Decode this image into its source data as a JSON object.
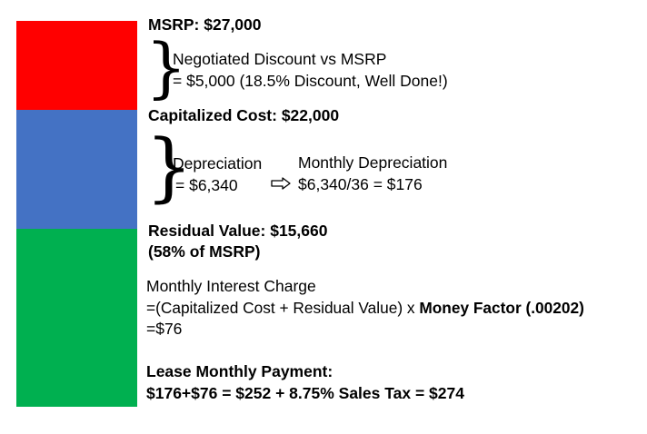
{
  "colors": {
    "msrp_segment": "#ff0000",
    "depreciation_segment": "#4472c4",
    "residual_segment": "#00b050"
  },
  "msrp_label": "MSRP: $27,000",
  "discount": {
    "line1": "Negotiated Discount vs MSRP",
    "line2": "= $5,000 (18.5% Discount, Well Done!)"
  },
  "capitalized_cost_label": "Capitalized Cost: $22,000",
  "depreciation": {
    "line1": "Depreciation",
    "line2": "= $6,340"
  },
  "monthly_depreciation": {
    "line1": "Monthly Depreciation",
    "line2": "$6,340/36 = $176"
  },
  "residual": {
    "line1": "Residual Value: $15,660",
    "line2": "(58% of MSRP)"
  },
  "interest": {
    "title": "Monthly Interest Charge",
    "formula_prefix": "=(Capitalized Cost + Residual Value) x ",
    "formula_bold": "Money Factor (.00202)",
    "result": "=$76"
  },
  "payment": {
    "title": "Lease Monthly Payment:",
    "formula": "$176+$76 = $252 + 8.75% Sales Tax = $274"
  }
}
